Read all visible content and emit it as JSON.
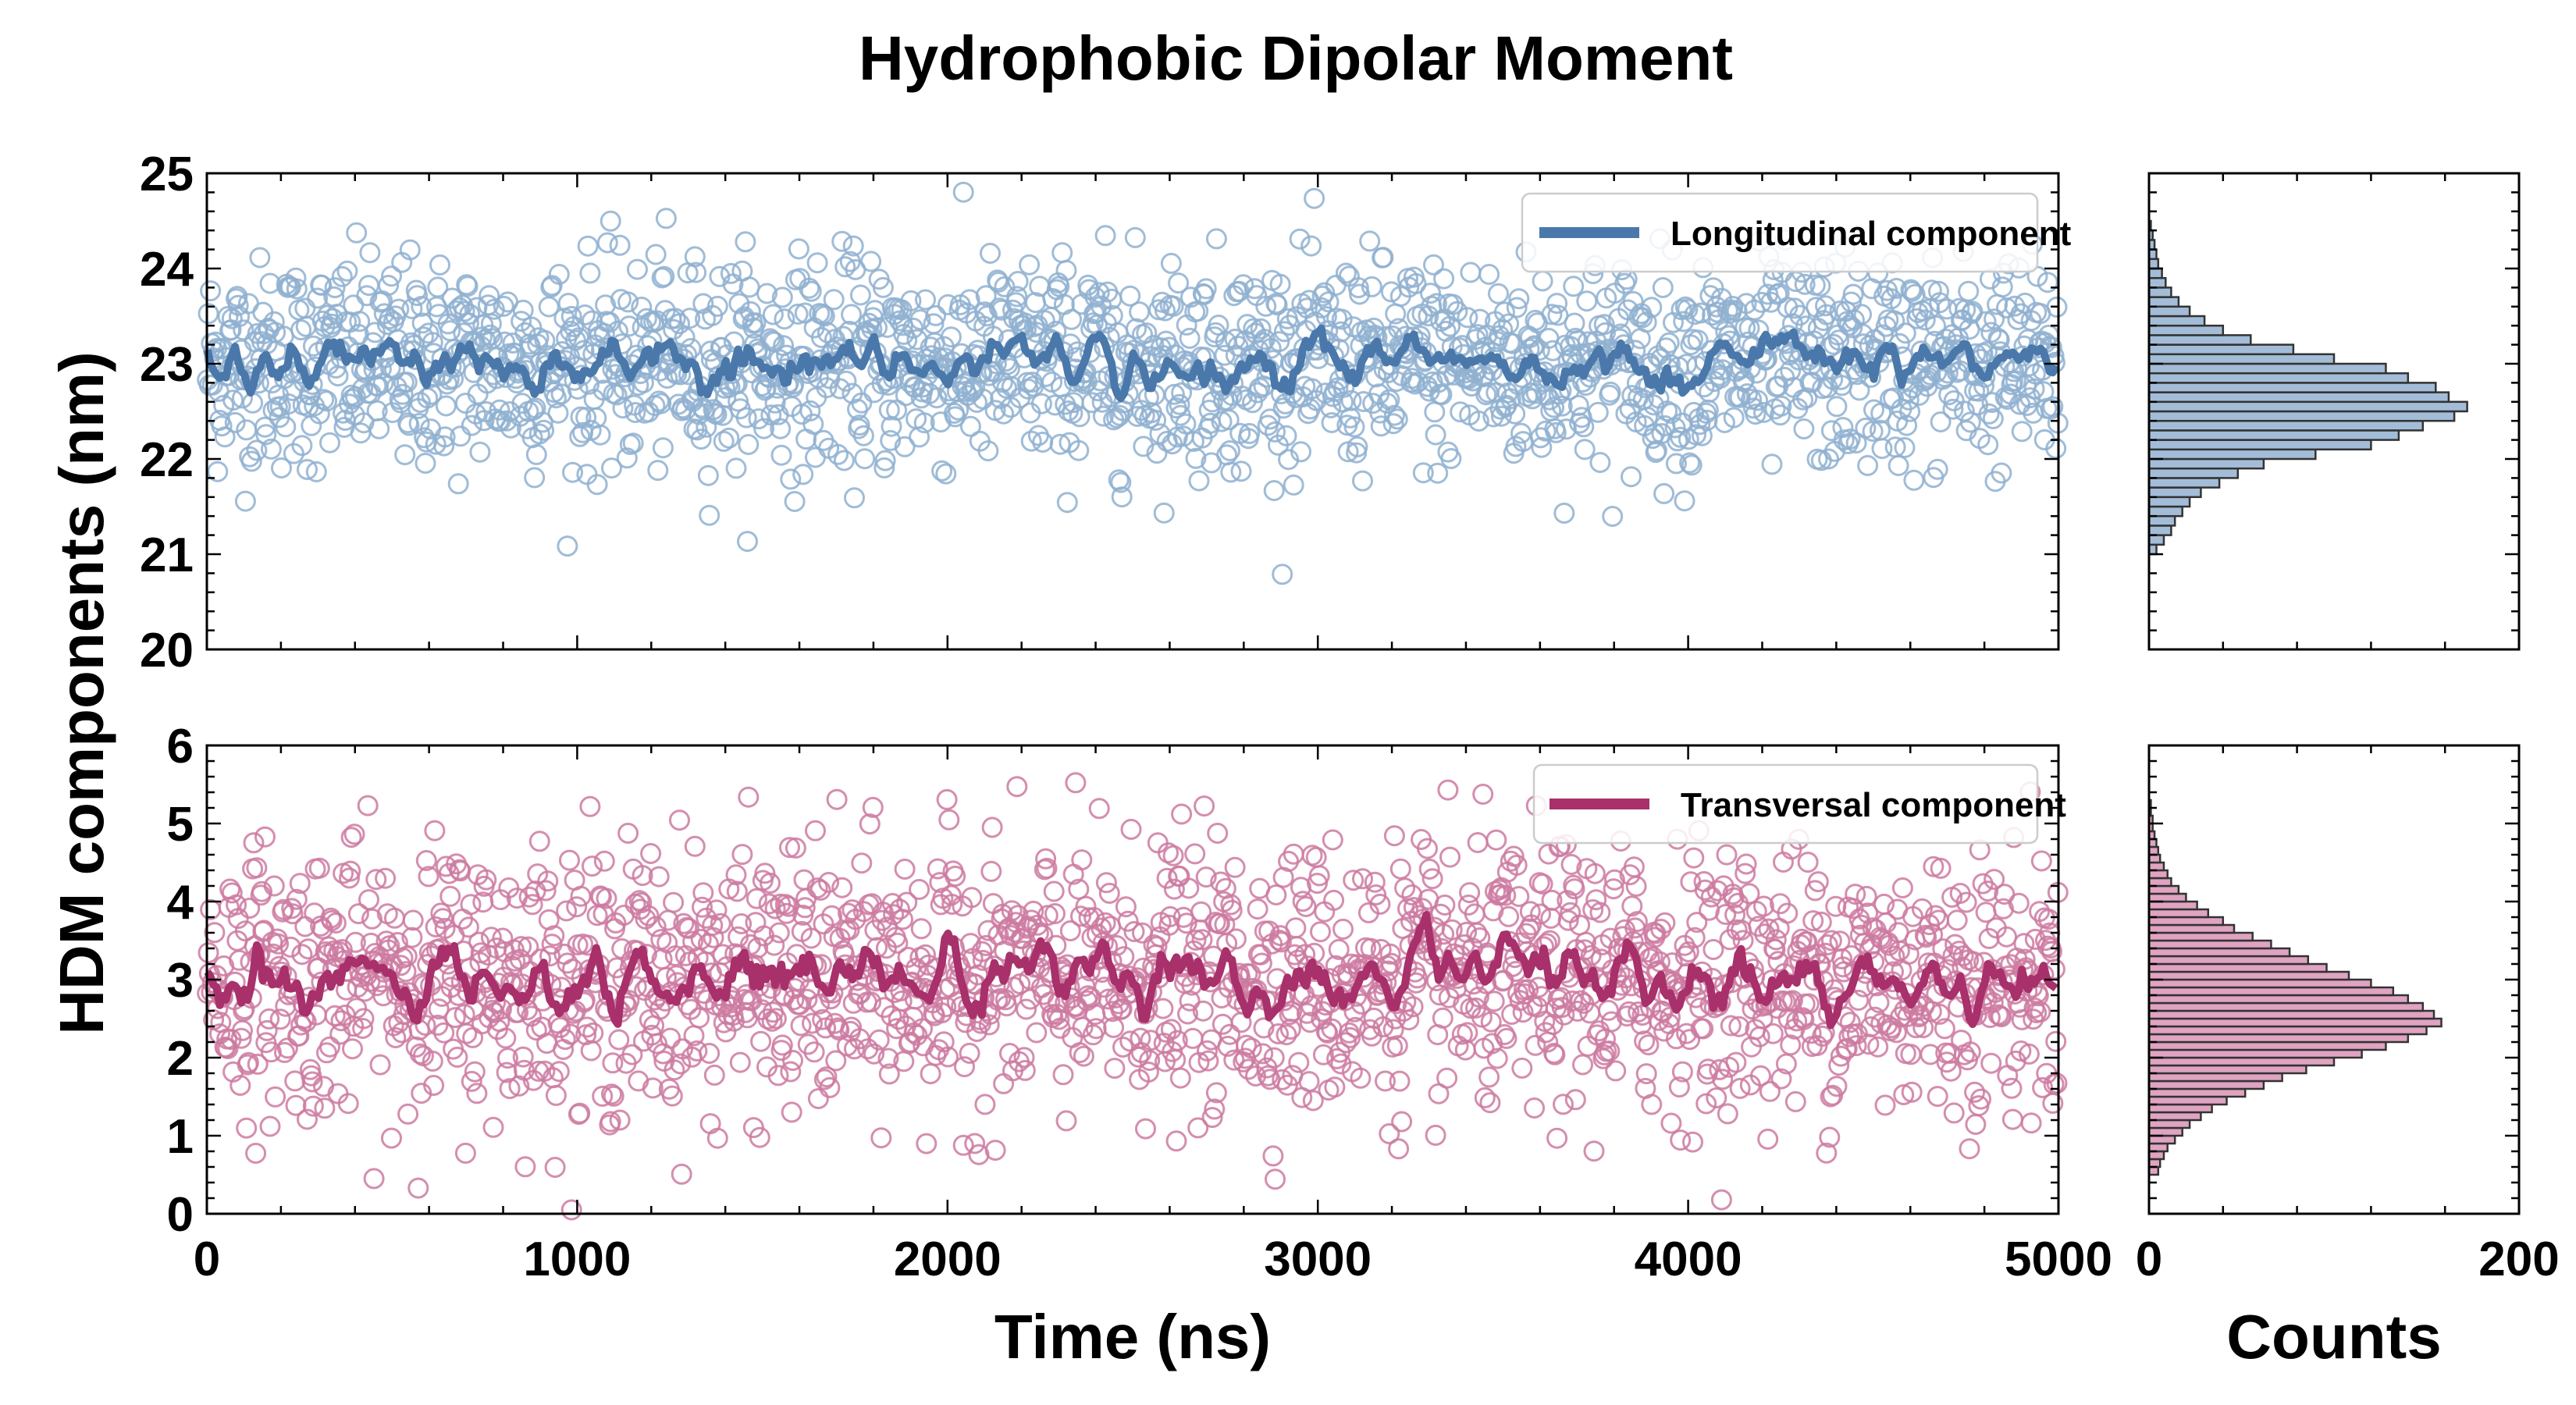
{
  "chart_data": {
    "title": "Hydrophobic Dipolar Moment",
    "shared_ylabel": "HDM components (nm)",
    "xlabel": "Time (ns)",
    "hist_xlabel": "Counts",
    "time_range": [
      0,
      5000
    ],
    "x_ticks": [
      0,
      1000,
      2000,
      3000,
      4000,
      5000
    ],
    "hist_range": [
      0,
      200
    ],
    "hist_ticks": [
      0,
      200
    ],
    "panels": [
      {
        "type": "scatter+line",
        "series_name": "Longitudinal component",
        "color": "#4a78aa",
        "scatter_color": "#8fb0d0",
        "hist_fill": "#a3bdd8",
        "ylim": [
          20,
          25
        ],
        "y_ticks": [
          20,
          21,
          22,
          23,
          24,
          25
        ],
        "mean": 23.0,
        "sd": 0.55,
        "n_points": 1800,
        "legend_position": "upper-right",
        "histogram": {
          "bins_from": 21.0,
          "bins_to": 24.5,
          "bin_width": 0.1,
          "counts": [
            4,
            8,
            12,
            14,
            18,
            22,
            28,
            38,
            48,
            62,
            90,
            120,
            135,
            148,
            165,
            172,
            162,
            155,
            140,
            128,
            100,
            78,
            55,
            40,
            30,
            22,
            16,
            12,
            9,
            7,
            5,
            4,
            3,
            2,
            1
          ]
        }
      },
      {
        "type": "scatter+line",
        "series_name": "Transversal component",
        "color": "#a8306b",
        "scatter_color": "#cc7aa1",
        "hist_fill": "#e0a3c2",
        "ylim": [
          0,
          6
        ],
        "y_ticks": [
          0,
          1,
          2,
          3,
          4,
          5,
          6
        ],
        "mean": 3.0,
        "sd": 0.85,
        "n_points": 1800,
        "legend_position": "upper-right",
        "histogram": {
          "bins_from": 0.5,
          "bins_to": 5.3,
          "bin_width": 0.1,
          "counts": [
            5,
            6,
            8,
            10,
            14,
            18,
            22,
            28,
            34,
            42,
            52,
            62,
            72,
            85,
            100,
            115,
            128,
            140,
            150,
            158,
            154,
            148,
            140,
            132,
            120,
            108,
            96,
            86,
            76,
            66,
            56,
            46,
            40,
            32,
            26,
            20,
            16,
            12,
            10,
            8,
            6,
            5,
            4,
            3,
            2,
            2,
            1,
            1
          ]
        }
      }
    ]
  }
}
